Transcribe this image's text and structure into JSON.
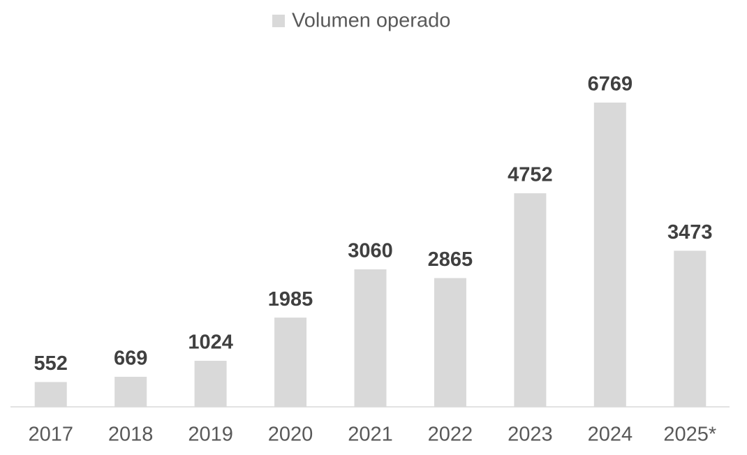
{
  "chart_data": {
    "type": "bar",
    "categories": [
      "2017",
      "2018",
      "2019",
      "2020",
      "2021",
      "2022",
      "2023",
      "2024",
      "2025*"
    ],
    "series": [
      {
        "name": "Volumen operado",
        "color": "#d9d9d9",
        "values": [
          552,
          669,
          1024,
          1985,
          3060,
          2865,
          4752,
          6769,
          3473
        ]
      }
    ],
    "legend": "top",
    "grid": false
  }
}
